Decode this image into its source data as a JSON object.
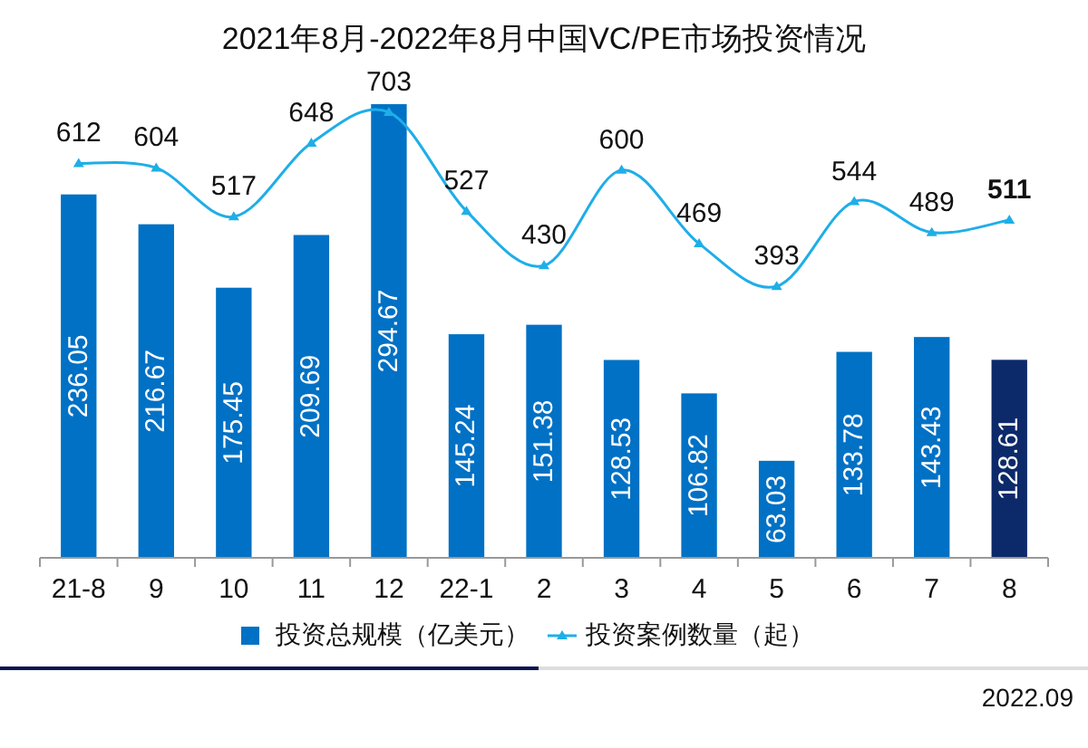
{
  "chart_data": {
    "type": "bar",
    "title": "2021年8月-2022年8月中国VC/PE市场投资情况",
    "categories": [
      "21-8",
      "9",
      "10",
      "11",
      "12",
      "22-1",
      "2",
      "3",
      "4",
      "5",
      "6",
      "7",
      "8"
    ],
    "series": [
      {
        "name": "投资总规模（亿美元）",
        "color": "#0071c5",
        "colors": [
          "#0071c5",
          "#0071c5",
          "#0071c5",
          "#0071c5",
          "#0071c5",
          "#0071c5",
          "#0071c5",
          "#0071c5",
          "#0071c5",
          "#0071c5",
          "#0071c5",
          "#0071c5",
          "#0c2a6a"
        ],
        "values": [
          236.05,
          216.67,
          175.45,
          209.69,
          294.67,
          145.24,
          151.38,
          128.53,
          106.82,
          63.03,
          133.78,
          143.43,
          128.61
        ]
      },
      {
        "name": "投资案例数量（起）",
        "type": "line",
        "axis": "y2",
        "color": "#1eaee8",
        "values": [
          612,
          604,
          517,
          648,
          703,
          527,
          430,
          600,
          469,
          393,
          544,
          489,
          511
        ]
      }
    ],
    "marker": "triangle",
    "data_labels": true,
    "legend": "bottom",
    "grid": false,
    "annotations": [
      "2022.09"
    ]
  }
}
